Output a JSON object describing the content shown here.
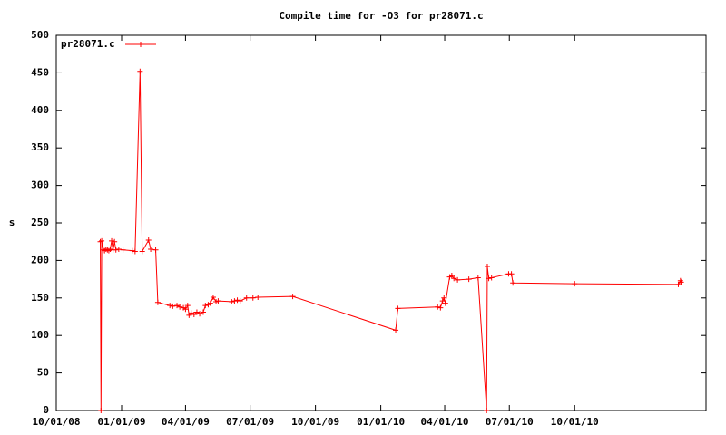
{
  "chart_data": {
    "type": "line",
    "title": "Compile time for -O3 for pr28071.c",
    "y_label": "s",
    "legend": "upper left",
    "grid": false,
    "x": [
      "2008-12-02",
      "2008-12-03",
      "2008-12-04",
      "2008-12-06",
      "2008-12-08",
      "2008-12-10",
      "2008-12-12",
      "2008-12-14",
      "2008-12-16",
      "2008-12-18",
      "2008-12-20",
      "2008-12-22",
      "2008-12-24",
      "2008-12-28",
      "2009-01-03",
      "2009-01-16",
      "2009-01-20",
      "2009-01-27",
      "2009-01-30",
      "2009-02-08",
      "2009-02-11",
      "2009-02-18",
      "2009-02-21",
      "2009-03-10",
      "2009-03-14",
      "2009-03-20",
      "2009-03-24",
      "2009-03-29",
      "2009-04-01",
      "2009-04-04",
      "2009-04-06",
      "2009-04-09",
      "2009-04-13",
      "2009-04-17",
      "2009-04-21",
      "2009-04-26",
      "2009-04-29",
      "2009-05-03",
      "2009-05-06",
      "2009-05-10",
      "2009-05-14",
      "2009-05-17",
      "2009-06-05",
      "2009-06-09",
      "2009-06-13",
      "2009-06-17",
      "2009-06-26",
      "2009-07-05",
      "2009-07-12",
      "2009-08-30",
      "2010-01-22",
      "2010-01-25",
      "2010-03-22",
      "2010-03-26",
      "2010-03-29",
      "2010-03-31",
      "2010-04-02",
      "2010-04-08",
      "2010-04-11",
      "2010-04-14",
      "2010-04-19",
      "2010-05-05",
      "2010-05-18",
      "2010-05-30",
      "2010-05-31",
      "2010-06-02",
      "2010-06-06",
      "2010-06-30",
      "2010-07-04",
      "2010-07-06",
      "2010-10-01",
      "2011-02-24",
      "2011-02-27",
      "2011-02-28"
    ],
    "series": [
      {
        "name": "pr28071.c",
        "color": "#ff0000",
        "values": [
          225,
          0,
          226,
          214,
          213,
          215,
          214,
          213,
          215,
          226,
          214,
          225,
          214,
          215,
          214,
          213,
          212,
          452,
          212,
          227,
          215,
          214,
          144,
          140,
          139,
          140,
          138,
          137,
          135,
          140,
          127,
          130,
          128,
          131,
          129,
          131,
          140,
          141,
          143,
          151,
          145,
          146,
          145,
          146,
          147,
          146,
          150,
          150,
          151,
          152,
          107,
          136,
          138,
          137,
          146,
          150,
          143,
          178,
          180,
          176,
          174,
          175,
          177,
          0,
          192,
          176,
          177,
          182,
          182,
          170,
          169,
          168,
          173,
          171
        ]
      }
    ],
    "xlim": [
      "2008-10-01",
      "2011-04-04"
    ],
    "xticks": [
      {
        "value": "2008-10-01",
        "label": "10/01/08"
      },
      {
        "value": "2009-01-01",
        "label": "01/01/09"
      },
      {
        "value": "2009-04-01",
        "label": "04/01/09"
      },
      {
        "value": "2009-07-01",
        "label": "07/01/09"
      },
      {
        "value": "2009-10-01",
        "label": "10/01/09"
      },
      {
        "value": "2010-01-01",
        "label": "01/01/10"
      },
      {
        "value": "2010-04-01",
        "label": "04/01/10"
      },
      {
        "value": "2010-07-01",
        "label": "07/01/10"
      },
      {
        "value": "2010-10-01",
        "label": "10/01/10"
      }
    ],
    "ylim": [
      0,
      500
    ],
    "yticks": [
      0,
      50,
      100,
      150,
      200,
      250,
      300,
      350,
      400,
      450,
      500
    ]
  }
}
